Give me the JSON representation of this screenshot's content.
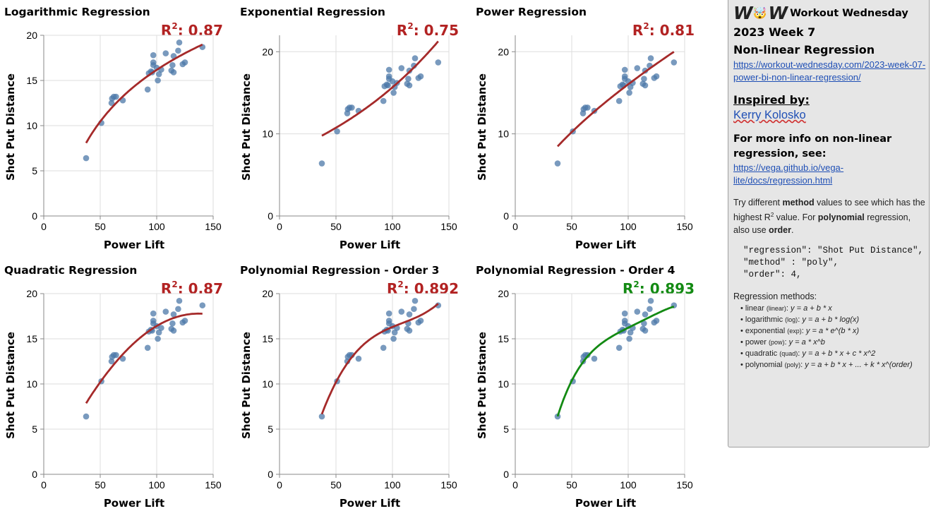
{
  "palette": {
    "point": "#4c78a8",
    "fit_line": "#a52a2a",
    "best_fit_line": "#138a13",
    "r2_text": "#b22222",
    "best_r2_text": "#138a13",
    "grid": "#dddddd",
    "axis": "#888888"
  },
  "charts": [
    {
      "title": "Logarithmic Regression",
      "r2_label": "R",
      "r2_sup": "2",
      "r2_value": ": 0.87",
      "best": false
    },
    {
      "title": "Exponential Regression",
      "r2_label": "R",
      "r2_sup": "2",
      "r2_value": ": 0.75",
      "best": false
    },
    {
      "title": "Power Regression",
      "r2_label": "R",
      "r2_sup": "2",
      "r2_value": ": 0.81",
      "best": false
    },
    {
      "title": "Quadratic Regression",
      "r2_label": "R",
      "r2_sup": "2",
      "r2_value": ": 0.87",
      "best": false
    },
    {
      "title": "Polynomial Regression - Order 3",
      "r2_label": "R",
      "r2_sup": "2",
      "r2_value": ": 0.892",
      "best": false
    },
    {
      "title": "Polynomial Regression - Order 4",
      "r2_label": "R",
      "r2_sup": "2",
      "r2_value": ": 0.893",
      "best": true
    }
  ],
  "chart_data": [
    {
      "type": "scatter",
      "title": "Logarithmic Regression",
      "xlabel": "Power Lift",
      "ylabel": "Shot Put Distance",
      "xlim": [
        0,
        150
      ],
      "ylim": [
        0,
        20
      ],
      "xticks": [
        0,
        50,
        100,
        150
      ],
      "yticks": [
        0,
        5,
        10,
        15,
        20
      ],
      "grid": true,
      "fit": {
        "method": "log",
        "x_range": [
          37.5,
          140.5
        ]
      },
      "r_squared": 0.87
    },
    {
      "type": "scatter",
      "title": "Exponential Regression",
      "xlabel": "Power Lift",
      "ylabel": "Shot Put Distance",
      "xlim": [
        0,
        150
      ],
      "ylim": [
        0,
        22
      ],
      "xticks": [
        0,
        50,
        100,
        150
      ],
      "yticks": [
        0,
        10,
        20
      ],
      "grid": true,
      "fit": {
        "method": "exp",
        "x_range": [
          37.5,
          140.5
        ]
      },
      "r_squared": 0.75
    },
    {
      "type": "scatter",
      "title": "Power Regression",
      "xlabel": "Power Lift",
      "ylabel": "Shot Put Distance",
      "xlim": [
        0,
        150
      ],
      "ylim": [
        0,
        22
      ],
      "xticks": [
        0,
        50,
        100,
        150
      ],
      "yticks": [
        0,
        10,
        20
      ],
      "grid": true,
      "fit": {
        "method": "pow",
        "x_range": [
          37.5,
          140.5
        ]
      },
      "r_squared": 0.81
    },
    {
      "type": "scatter",
      "title": "Quadratic Regression",
      "xlabel": "Power Lift",
      "ylabel": "Shot Put Distance",
      "xlim": [
        0,
        150
      ],
      "ylim": [
        0,
        20
      ],
      "xticks": [
        0,
        50,
        100,
        150
      ],
      "yticks": [
        0,
        5,
        10,
        15,
        20
      ],
      "grid": true,
      "fit": {
        "method": "quad",
        "x_range": [
          37.5,
          140.5
        ]
      },
      "r_squared": 0.87
    },
    {
      "type": "scatter",
      "title": "Polynomial Regression - Order 3",
      "xlabel": "Power Lift",
      "ylabel": "Shot Put Distance",
      "xlim": [
        0,
        150
      ],
      "ylim": [
        0,
        20
      ],
      "xticks": [
        0,
        50,
        100,
        150
      ],
      "yticks": [
        0,
        5,
        10,
        15,
        20
      ],
      "grid": true,
      "fit": {
        "method": "poly",
        "order": 3,
        "x_range": [
          37.5,
          140.5
        ]
      },
      "r_squared": 0.892
    },
    {
      "type": "scatter",
      "title": "Polynomial Regression - Order 4",
      "xlabel": "Power Lift",
      "ylabel": "Shot Put Distance",
      "xlim": [
        0,
        150
      ],
      "ylim": [
        0,
        20
      ],
      "xticks": [
        0,
        50,
        100,
        150
      ],
      "yticks": [
        0,
        5,
        10,
        15,
        20
      ],
      "grid": true,
      "fit": {
        "method": "poly",
        "order": 4,
        "x_range": [
          37.5,
          140.5
        ]
      },
      "r_squared": 0.893
    }
  ],
  "points": [
    [
      37.5,
      6.4
    ],
    [
      51,
      10.3
    ],
    [
      60,
      12.5
    ],
    [
      60.5,
      13.0
    ],
    [
      62,
      13.2
    ],
    [
      64,
      13.2
    ],
    [
      70,
      12.8
    ],
    [
      92,
      14.0
    ],
    [
      93,
      15.8
    ],
    [
      95,
      16.0
    ],
    [
      96,
      15.9
    ],
    [
      97,
      17.0
    ],
    [
      97,
      16.7
    ],
    [
      97,
      17.8
    ],
    [
      100,
      16.4
    ],
    [
      101,
      15.0
    ],
    [
      102,
      15.7
    ],
    [
      104,
      16.2
    ],
    [
      108,
      18.0
    ],
    [
      113,
      16.1
    ],
    [
      114,
      16.7
    ],
    [
      115,
      17.7
    ],
    [
      115,
      15.9
    ],
    [
      119,
      18.3
    ],
    [
      120,
      19.2
    ],
    [
      123,
      16.8
    ],
    [
      125,
      17.0
    ],
    [
      140.5,
      18.7
    ]
  ],
  "panel": {
    "logo_letters": [
      "W",
      "W"
    ],
    "logo_face": "🤯",
    "brand": "Workout Wednesday",
    "week": "2023 Week 7",
    "topic": "Non-linear Regression",
    "link1": "https://workout-wednesday.com/2023-week-07-power-bi-non-linear-regression/",
    "inspired_heading": "Inspired by:",
    "author": "Kerry Kolosko",
    "more_info": "For more info on non-linear regression, see:",
    "link2": "https://vega.github.io/vega-lite/docs/regression.html",
    "try": {
      "t1": "Try different ",
      "b1": "method",
      "t2": " values to see which has the highest R",
      "sup": "2",
      "t3": " value. For ",
      "b2": "polynomial",
      "t4": " regression, also use ",
      "b3": "order",
      "t5": "."
    },
    "code_lines": [
      "\"regression\": \"Shot Put Distance\",",
      "\"method\" : \"poly\",",
      "\"order\": 4,"
    ],
    "methods_title": "Regression methods:",
    "methods": [
      {
        "name": "linear",
        "code": "(linear)",
        "formula": "y = a + b * x"
      },
      {
        "name": "logarithmic",
        "code": "(log)",
        "formula": "y = a + b * log(x)"
      },
      {
        "name": "exponential",
        "code": "(exp)",
        "formula": "y = a * e^(b * x)"
      },
      {
        "name": "power",
        "code": "(pow)",
        "formula": "y = a * x^b"
      },
      {
        "name": "quadratic",
        "code": "(quad)",
        "formula": "y = a + b * x + c * x^2"
      },
      {
        "name": "polynomial",
        "code": "(poly)",
        "formula": "y = a + b * x + ... + k * x^(order)"
      }
    ]
  }
}
